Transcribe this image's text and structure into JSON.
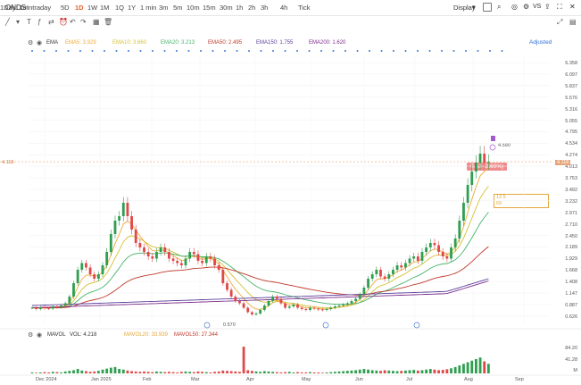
{
  "toolbar": {
    "ticker": "ONDS",
    "timeframes": [
      "Intraday",
      "5D",
      "1D",
      "1W",
      "1M",
      "1Q",
      "1Y",
      "1 min",
      "3m",
      "5m",
      "10m",
      "15m",
      "30m",
      "1h",
      "2h",
      "3h",
      "4h",
      "Tick",
      "1Day: 1m"
    ],
    "active_timeframe": "1D",
    "display_label": "Display",
    "vs_label": "VS"
  },
  "indicators": {
    "ema_label": "EMA",
    "ema5": "EMA5: 3.929",
    "ema10": "EMA10: 3.660",
    "ema20": "EMA20: 3.213",
    "ema50": "EMA50: 2.495",
    "ema150": "EMA150: 1.755",
    "ema200": "EMA200: 1.620",
    "adjusted_label": "Adjusted",
    "colors": {
      "ema5": "#f2a93b",
      "ema10": "#d4c034",
      "ema20": "#46b36b",
      "ema50": "#c0392b",
      "ema150": "#5a3e9b",
      "ema200": "#7b2a8a"
    }
  },
  "price_axis": [
    "6.358",
    "6.097",
    "5.837",
    "5.576",
    "5.316",
    "5.055",
    "4.795",
    "4.534",
    "4.274",
    "4.013",
    "3.753",
    "3.492",
    "3.232",
    "2.971",
    "2.710",
    "2.450",
    "2.189",
    "1.929",
    "1.668",
    "1.408",
    "1.147",
    "0.887",
    "0.626"
  ],
  "current_price": "4.118",
  "price_tag": "0.42 (2.60%)",
  "high_label": "4.590",
  "low_label": "0.570",
  "box_labels": [
    "12.5",
    "69"
  ],
  "volume": {
    "label": "MAVOL",
    "vol": "VOL: 4.218",
    "mavol20": "MAVOL20: 33.939",
    "mavol50": "MAVOL50: 27.344",
    "axis": [
      "84.20",
      "41.28",
      "M"
    ]
  },
  "x_axis": [
    "Dec 2024",
    "Jan 2025",
    "Feb",
    "Mar",
    "Apr",
    "May",
    "Jun",
    "Jul",
    "Aug",
    "Sep"
  ],
  "chart_data": {
    "type": "candlestick",
    "approximate_close": [
      0.85,
      0.82,
      0.86,
      0.84,
      0.83,
      0.88,
      0.86,
      0.9,
      0.95,
      1.1,
      1.4,
      1.7,
      1.85,
      1.75,
      1.6,
      1.5,
      1.6,
      1.8,
      2.1,
      2.5,
      2.8,
      2.9,
      3.2,
      2.9,
      2.6,
      2.3,
      2.2,
      2.1,
      2.0,
      1.95,
      2.1,
      2.2,
      2.1,
      1.95,
      1.9,
      1.85,
      1.8,
      1.95,
      2.1,
      2.05,
      1.9,
      1.85,
      2.0,
      1.95,
      1.8,
      1.7,
      1.4,
      1.25,
      1.1,
      1.0,
      0.95,
      0.85,
      0.75,
      0.7,
      0.72,
      0.8,
      0.9,
      1.0,
      1.1,
      1.05,
      0.95,
      0.85,
      0.88,
      0.92,
      0.85,
      0.82,
      0.8,
      0.85,
      0.83,
      0.81,
      0.8,
      0.82,
      0.85,
      0.88,
      0.9,
      0.92,
      0.95,
      1.0,
      1.05,
      1.15,
      1.3,
      1.5,
      1.6,
      1.7,
      1.55,
      1.5,
      1.6,
      1.7,
      1.8,
      1.75,
      1.85,
      1.95,
      2.0,
      1.9,
      2.1,
      2.2,
      2.3,
      2.25,
      2.1,
      2.0,
      1.95,
      2.2,
      2.4,
      2.8,
      3.2,
      3.6,
      3.9,
      4.1,
      4.3,
      4.1,
      4.12
    ],
    "approximate_volume": [
      3,
      2,
      3,
      4,
      3,
      5,
      4,
      3,
      6,
      8,
      10,
      14,
      9,
      7,
      5,
      6,
      8,
      12,
      15,
      18,
      20,
      14,
      12,
      9,
      7,
      6,
      5,
      6,
      5,
      4,
      6,
      5,
      4,
      5,
      4,
      3,
      5,
      6,
      5,
      4,
      6,
      5,
      4,
      3,
      5,
      6,
      9,
      8,
      7,
      6,
      5,
      84,
      10,
      8,
      6,
      5,
      7,
      6,
      5,
      4,
      3,
      4,
      5,
      3,
      4,
      3,
      3,
      4,
      3,
      3,
      2,
      3,
      4,
      5,
      6,
      7,
      8,
      9,
      10,
      12,
      14,
      12,
      10,
      9,
      8,
      10,
      9,
      8,
      7,
      8,
      9,
      10,
      11,
      9,
      10,
      12,
      14,
      12,
      10,
      11,
      13,
      16,
      20,
      25,
      30,
      35,
      40,
      45,
      50,
      38,
      30
    ]
  }
}
